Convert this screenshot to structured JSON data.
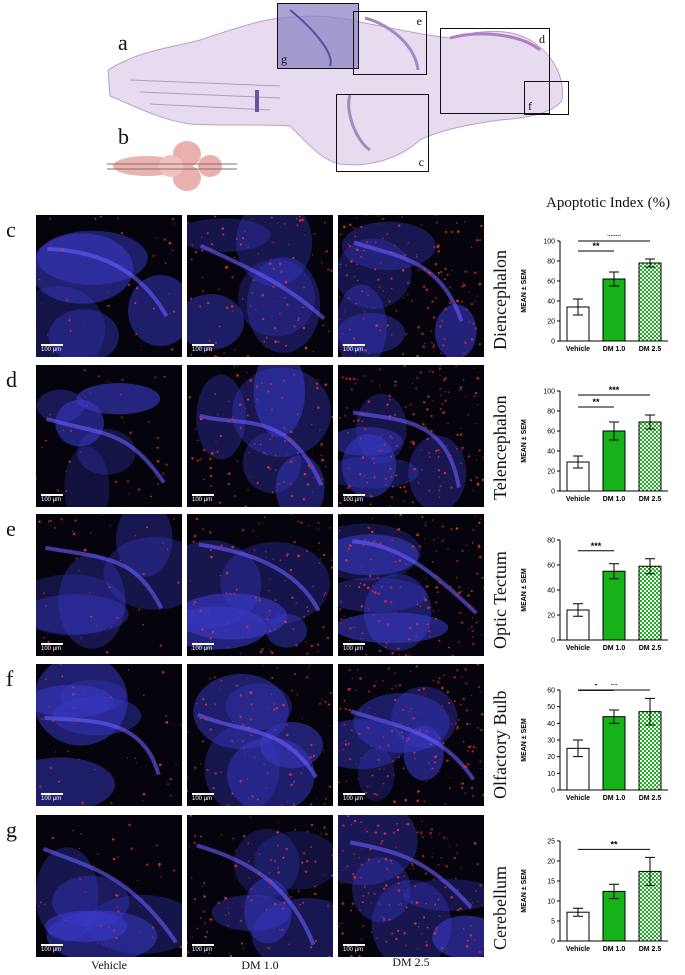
{
  "figure": {
    "overview_labels": {
      "a": "a",
      "b": "b"
    },
    "overview_boxes": [
      "e",
      "g",
      "d",
      "f",
      "c"
    ],
    "chart_header": "Apoptotic Index (%)",
    "column_labels": [
      "Vehicle",
      "DM 1.0",
      "DM 2.5"
    ],
    "scalebar_text": "100 µm",
    "rows": [
      {
        "letter": "c",
        "region": "Diencephalon"
      },
      {
        "letter": "d",
        "region": "Telencephalon"
      },
      {
        "letter": "e",
        "region": "Optic Tectum"
      },
      {
        "letter": "f",
        "region": "Olfactory Bulb"
      },
      {
        "letter": "g",
        "region": "Cerebellum"
      }
    ]
  },
  "colors": {
    "vehicle": "#ffffff",
    "dm10": "#16b21a",
    "dm25": "#7fd17f",
    "stain_blue": "#3a3acc",
    "stain_red": "#e0303a"
  },
  "chart_data": [
    {
      "type": "bar",
      "categories": [
        "Vehicle",
        "DM 1.0",
        "DM 2.5"
      ],
      "values": [
        34,
        62,
        78
      ],
      "errors": [
        8,
        7,
        4
      ],
      "ylabel": "MEAN ± SEM",
      "ylim": [
        0,
        100
      ],
      "yticks": [
        0,
        20,
        40,
        60,
        80,
        100
      ],
      "significance": [
        {
          "from": 0,
          "to": 1,
          "label": "**"
        },
        {
          "from": 0,
          "to": 2,
          "label": "****"
        }
      ]
    },
    {
      "type": "bar",
      "categories": [
        "Vehicle",
        "DM 1.0",
        "DM 2.5"
      ],
      "values": [
        29,
        60,
        69
      ],
      "errors": [
        6,
        9,
        7
      ],
      "ylabel": "MEAN ± SEM",
      "ylim": [
        0,
        100
      ],
      "yticks": [
        0,
        20,
        40,
        60,
        80,
        100
      ],
      "significance": [
        {
          "from": 0,
          "to": 1,
          "label": "**"
        },
        {
          "from": 0,
          "to": 2,
          "label": "***"
        }
      ]
    },
    {
      "type": "bar",
      "categories": [
        "Vehicle",
        "DM 1.0",
        "DM 2.5"
      ],
      "values": [
        24,
        55,
        59
      ],
      "errors": [
        5,
        6,
        6
      ],
      "ylabel": "MEAN ± SEM",
      "ylim": [
        0,
        80
      ],
      "yticks": [
        0,
        20,
        40,
        60,
        80
      ],
      "significance": [
        {
          "from": 0,
          "to": 1,
          "label": "***"
        }
      ]
    },
    {
      "type": "bar",
      "categories": [
        "Vehicle",
        "DM 1.0",
        "DM 2.5"
      ],
      "values": [
        25,
        44,
        47
      ],
      "errors": [
        5,
        4,
        8
      ],
      "ylabel": "MEAN ± SEM",
      "ylim": [
        0,
        60
      ],
      "yticks": [
        0,
        10,
        20,
        30,
        40,
        50,
        60
      ],
      "significance": [
        {
          "from": 0,
          "to": 1,
          "label": "*"
        },
        {
          "from": 0,
          "to": 2,
          "label": "**"
        }
      ]
    },
    {
      "type": "bar",
      "categories": [
        "Vehicle",
        "DM 1.0",
        "DM 2.5"
      ],
      "values": [
        7.2,
        12.4,
        17.4
      ],
      "errors": [
        1.0,
        1.8,
        3.5
      ],
      "ylabel": "MEAN ± SEM",
      "ylim": [
        0,
        25
      ],
      "yticks": [
        0,
        5,
        10,
        15,
        20,
        25
      ],
      "significance": [
        {
          "from": 0,
          "to": 2,
          "label": "**"
        }
      ]
    }
  ]
}
